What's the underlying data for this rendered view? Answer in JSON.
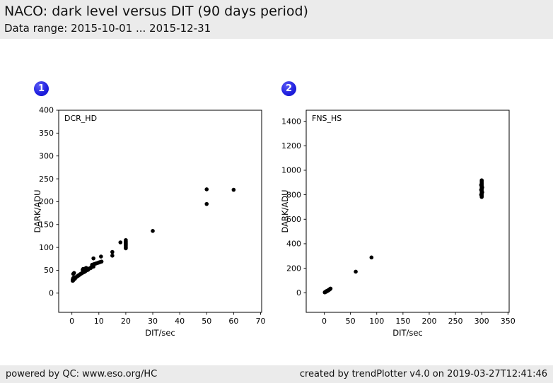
{
  "header": {
    "title": "NACO: dark level versus DIT (90 days period)",
    "subtitle": "Data range: 2015-10-01 ... 2015-12-31"
  },
  "footer": {
    "left": "powered by QC: www.eso.org/HC",
    "right": "created by trendPlotter v4.0 on 2019-03-27T12:41:46"
  },
  "colors": {
    "strip_gray": "#ebebeb",
    "badge_blue": "#2222e0",
    "marker": "#000000",
    "axis": "#000000",
    "plot_bg": "#ffffff"
  },
  "chart_data": [
    {
      "type": "scatter",
      "badge": "1",
      "inset_title": "DCR_HD",
      "xlabel": "DIT/sec",
      "ylabel": "DARK/ADU",
      "xlim": [
        -4.9,
        70.4
      ],
      "ylim": [
        -42,
        400
      ],
      "xticks": [
        0,
        10,
        20,
        30,
        40,
        50,
        60,
        70
      ],
      "yticks": [
        0,
        50,
        100,
        150,
        200,
        250,
        300,
        350,
        400
      ],
      "grid": false,
      "legend": "none",
      "marker_radius": 2.8,
      "points": [
        [
          0.3,
          27
        ],
        [
          0.3,
          29
        ],
        [
          0.4,
          31
        ],
        [
          0.5,
          28
        ],
        [
          0.5,
          33
        ],
        [
          0.6,
          30
        ],
        [
          0.5,
          42
        ],
        [
          0.8,
          44
        ],
        [
          1,
          31
        ],
        [
          1,
          34
        ],
        [
          1.3,
          33
        ],
        [
          1.5,
          35
        ],
        [
          1.8,
          36
        ],
        [
          2,
          37
        ],
        [
          2.3,
          38
        ],
        [
          2.5,
          39
        ],
        [
          2.8,
          40
        ],
        [
          3,
          41
        ],
        [
          3.2,
          42
        ],
        [
          3.5,
          43
        ],
        [
          3.8,
          44
        ],
        [
          4,
          45
        ],
        [
          4,
          51
        ],
        [
          4.2,
          53
        ],
        [
          4.5,
          46
        ],
        [
          4.8,
          47
        ],
        [
          5,
          48
        ],
        [
          5,
          50
        ],
        [
          5,
          54
        ],
        [
          5.3,
          55
        ],
        [
          5.5,
          50
        ],
        [
          6,
          51
        ],
        [
          6,
          53
        ],
        [
          6.5,
          54
        ],
        [
          7,
          55
        ],
        [
          7.2,
          57
        ],
        [
          7.5,
          62
        ],
        [
          8,
          58
        ],
        [
          8,
          63
        ],
        [
          8,
          76
        ],
        [
          8.5,
          64
        ],
        [
          9,
          65
        ],
        [
          9.5,
          66
        ],
        [
          10,
          67
        ],
        [
          10.5,
          68
        ],
        [
          10.8,
          80
        ],
        [
          11,
          69
        ],
        [
          15,
          82
        ],
        [
          15,
          90
        ],
        [
          18,
          111
        ],
        [
          20,
          98
        ],
        [
          20,
          100
        ],
        [
          20,
          103
        ],
        [
          20,
          105
        ],
        [
          20,
          107
        ],
        [
          20,
          109
        ],
        [
          20,
          111
        ],
        [
          20,
          113
        ],
        [
          20,
          116
        ],
        [
          30,
          136
        ],
        [
          50,
          195
        ],
        [
          50,
          227
        ],
        [
          60,
          226
        ]
      ]
    },
    {
      "type": "scatter",
      "badge": "2",
      "inset_title": "FNS_HS",
      "xlabel": "DIT/sec",
      "ylabel": "DARK/ADU",
      "xlim": [
        -34.4,
        352.3
      ],
      "ylim": [
        -160,
        1490
      ],
      "xticks": [
        0,
        50,
        100,
        150,
        200,
        250,
        300,
        350
      ],
      "yticks": [
        0,
        200,
        400,
        600,
        800,
        1000,
        1200,
        1400
      ],
      "grid": false,
      "legend": "none",
      "marker_radius": 2.8,
      "points": [
        [
          1,
          3
        ],
        [
          1.5,
          5
        ],
        [
          2,
          6
        ],
        [
          2.5,
          7
        ],
        [
          3,
          8
        ],
        [
          3,
          10
        ],
        [
          3.5,
          9
        ],
        [
          4,
          11
        ],
        [
          4.5,
          12
        ],
        [
          5,
          13
        ],
        [
          5,
          15
        ],
        [
          5.5,
          14
        ],
        [
          6,
          16
        ],
        [
          6.5,
          17
        ],
        [
          7,
          18
        ],
        [
          7.5,
          19
        ],
        [
          8,
          21
        ],
        [
          8.5,
          22
        ],
        [
          9,
          24
        ],
        [
          9.5,
          25
        ],
        [
          10,
          27
        ],
        [
          10.5,
          28
        ],
        [
          11,
          30
        ],
        [
          11.5,
          32
        ],
        [
          12,
          34
        ],
        [
          60,
          172
        ],
        [
          90,
          288
        ],
        [
          299,
          800
        ],
        [
          299,
          840
        ],
        [
          299,
          880
        ],
        [
          300,
          782
        ],
        [
          300,
          790
        ],
        [
          300,
          798
        ],
        [
          300,
          806
        ],
        [
          300,
          814
        ],
        [
          300,
          822
        ],
        [
          300,
          830
        ],
        [
          300,
          838
        ],
        [
          300,
          846
        ],
        [
          300,
          854
        ],
        [
          300,
          862
        ],
        [
          300,
          870
        ],
        [
          300,
          878
        ],
        [
          300,
          886
        ],
        [
          300,
          894
        ],
        [
          300,
          902
        ],
        [
          300,
          910
        ],
        [
          300,
          918
        ],
        [
          301,
          820
        ],
        [
          301,
          860
        ]
      ]
    }
  ]
}
